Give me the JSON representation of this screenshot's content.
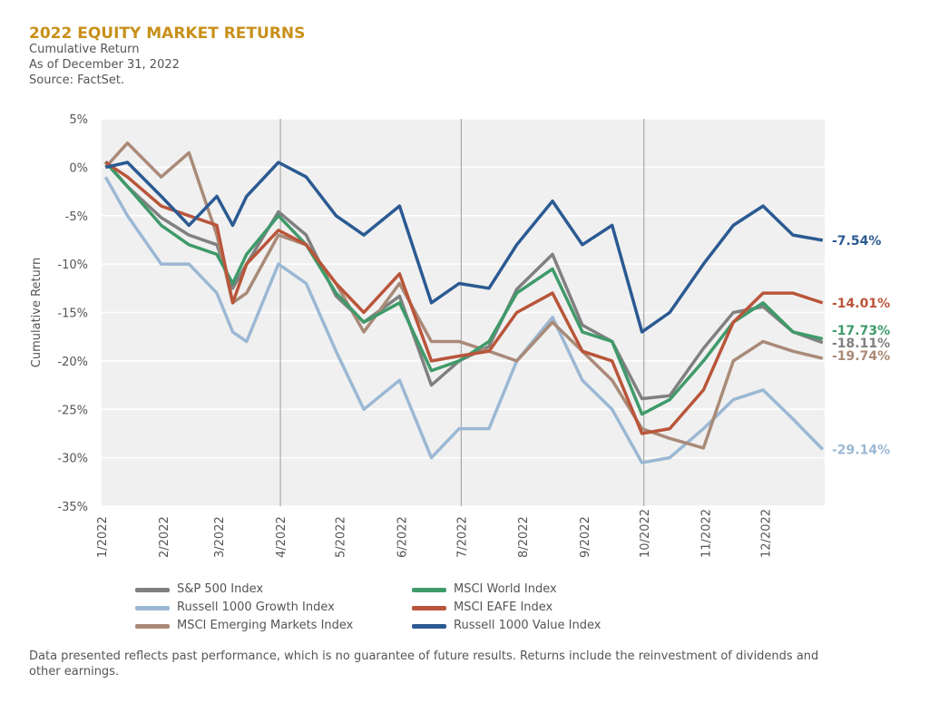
{
  "header": {
    "title": "2022 EQUITY MARKET RETURNS",
    "subtitle": "Cumulative Return",
    "as_of": "As of December 31, 2022",
    "source": "Source: FactSet."
  },
  "footer": {
    "disclaimer": "Data presented reflects past performance, which is no guarantee of future results. Returns include the reinvestment of dividends and other earnings."
  },
  "chart_data": {
    "type": "line",
    "ylabel": "Cumulative Return",
    "ylim": [
      -35,
      5
    ],
    "yticks": [
      "5%",
      "0%",
      "-5%",
      "-10%",
      "-15%",
      "-20%",
      "-25%",
      "-30%",
      "-35%"
    ],
    "xticks": [
      "1/2022",
      "2/2022",
      "3/2022",
      "4/2022",
      "5/2022",
      "6/2022",
      "7/2022",
      "8/2022",
      "9/2022",
      "10/2022",
      "11/2022",
      "12/2022"
    ],
    "grid": true,
    "legend_position": "bottom",
    "x": [
      "2022-01-03",
      "2022-01-14",
      "2022-01-31",
      "2022-02-14",
      "2022-02-28",
      "2022-03-08",
      "2022-03-15",
      "2022-03-31",
      "2022-04-14",
      "2022-04-29",
      "2022-05-13",
      "2022-05-31",
      "2022-06-16",
      "2022-06-30",
      "2022-07-15",
      "2022-07-29",
      "2022-08-16",
      "2022-08-31",
      "2022-09-15",
      "2022-09-30",
      "2022-10-14",
      "2022-10-31",
      "2022-11-15",
      "2022-11-30",
      "2022-12-15",
      "2022-12-30"
    ],
    "series": [
      {
        "name": "S&P 500 Index",
        "color": "#808080",
        "end_label": "-18.11%",
        "values": [
          0.6,
          -2,
          -5.2,
          -7,
          -8,
          -12.5,
          -10,
          -4.6,
          -7,
          -13.3,
          -16,
          -13.3,
          -22.5,
          -20,
          -18.5,
          -12.6,
          -9,
          -16.3,
          -18,
          -23.9,
          -23.6,
          -18.7,
          -15,
          -14.4,
          -17,
          -18.11
        ]
      },
      {
        "name": "Russell 1000 Growth Index",
        "color": "#9bb8d4",
        "end_label": "-29.14%",
        "values": [
          -1,
          -5,
          -10,
          -10,
          -13,
          -17,
          -18,
          -10,
          -12,
          -19,
          -25,
          -22,
          -30,
          -27,
          -27,
          -20,
          -15.5,
          -22,
          -25,
          -30.5,
          -30,
          -27,
          -24,
          -23,
          -26,
          -29.14
        ]
      },
      {
        "name": "MSCI Emerging Markets Index",
        "color": "#a98a78",
        "end_label": "-19.74%",
        "values": [
          0,
          2.5,
          -1,
          1.5,
          -7,
          -14,
          -13,
          -7,
          -8,
          -12,
          -17,
          -12,
          -18,
          -18,
          -19,
          -20,
          -16,
          -19,
          -22,
          -27,
          -28,
          -29,
          -20,
          -18,
          -19,
          -19.74
        ]
      },
      {
        "name": "MSCI World Index",
        "color": "#3f9a6a",
        "end_label": "-17.73%",
        "values": [
          0.5,
          -2,
          -6,
          -8,
          -9,
          -12,
          -9,
          -5,
          -8,
          -13,
          -16,
          -14,
          -21,
          -20,
          -18,
          -13,
          -10.5,
          -17,
          -18,
          -25.5,
          -24,
          -20,
          -16,
          -14,
          -17,
          -17.73
        ]
      },
      {
        "name": "MSCI EAFE Index",
        "color": "#b9553a",
        "end_label": "-14.01%",
        "values": [
          0.5,
          -1,
          -4,
          -5,
          -6,
          -14,
          -10,
          -6.5,
          -8,
          -12,
          -15,
          -11,
          -20,
          -19.5,
          -19,
          -15,
          -13,
          -19,
          -20,
          -27.5,
          -27,
          -23,
          -16,
          -13,
          -13,
          -14.01
        ]
      },
      {
        "name": "Russell 1000 Value Index",
        "color": "#2b5a92",
        "end_label": "-7.54%",
        "values": [
          0,
          0.5,
          -3,
          -6,
          -3,
          -6,
          -3,
          0.5,
          -1,
          -5,
          -7,
          -4,
          -14,
          -12,
          -12.5,
          -8,
          -3.5,
          -8,
          -6,
          -17,
          -15,
          -10,
          -6,
          -4,
          -7,
          -7.54
        ]
      }
    ]
  }
}
